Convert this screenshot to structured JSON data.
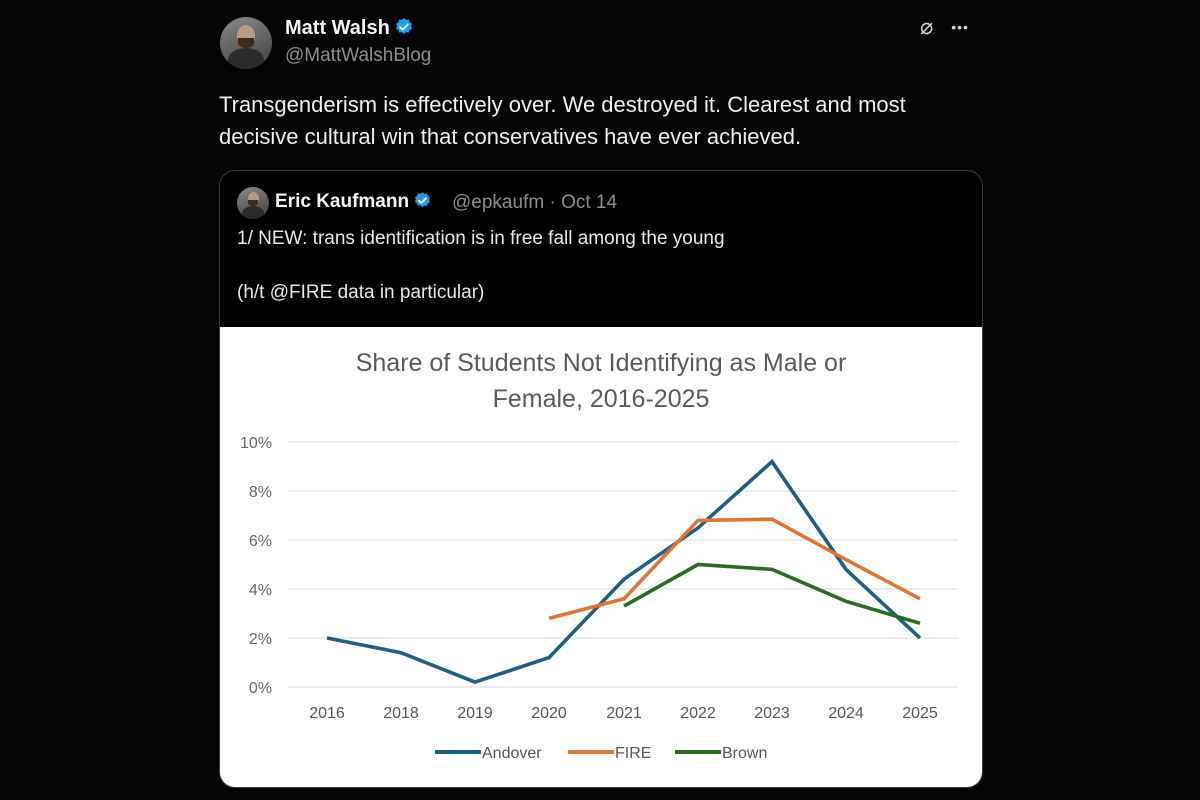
{
  "tweet": {
    "author_name": "Matt Walsh",
    "author_handle": "@MattWalshBlog",
    "text_line1": "Transgenderism is effectively over. We destroyed it. Clearest and most",
    "text_line2": "decisive cultural win that conservatives have ever achieved.",
    "icons": [
      "grok-icon",
      "more-icon"
    ],
    "icon_glyphs": {
      "grok": "⌀",
      "more": "•••"
    }
  },
  "quote": {
    "author_name": "Eric Kaufmann",
    "author_handle": "@epkaufm",
    "separator": "·",
    "date": "Oct 14",
    "line1": "1/ NEW: trans identification is in free fall among the young",
    "line2": "(h/t @FIRE data in particular)"
  },
  "colors": {
    "verified": "#1d9bf0",
    "andover": "#1f5f84",
    "fire": "#e07532",
    "brown": "#2c6a24"
  },
  "chart_data": {
    "type": "line",
    "title_line1": "Share of Students Not Identifying as Male or",
    "title_line2": "Female, 2016-2025",
    "categories": [
      "2016",
      "2018",
      "2019",
      "2020",
      "2021",
      "2022",
      "2023",
      "2024",
      "2025"
    ],
    "y_ticks": [
      "0%",
      "2%",
      "4%",
      "6%",
      "8%",
      "10%"
    ],
    "ylim": [
      0,
      10
    ],
    "grid": true,
    "legend_position": "bottom",
    "series": [
      {
        "name": "Andover",
        "color": "#1f5f84",
        "values": [
          2.0,
          1.4,
          0.2,
          1.2,
          4.4,
          6.5,
          9.2,
          4.8,
          2.0
        ]
      },
      {
        "name": "FIRE",
        "color": "#e07532",
        "values": [
          null,
          null,
          null,
          2.8,
          3.6,
          6.8,
          6.85,
          5.2,
          3.6
        ]
      },
      {
        "name": "Brown",
        "color": "#2c6a24",
        "values": [
          null,
          null,
          null,
          null,
          3.3,
          5.0,
          4.8,
          3.5,
          2.6
        ]
      }
    ]
  }
}
